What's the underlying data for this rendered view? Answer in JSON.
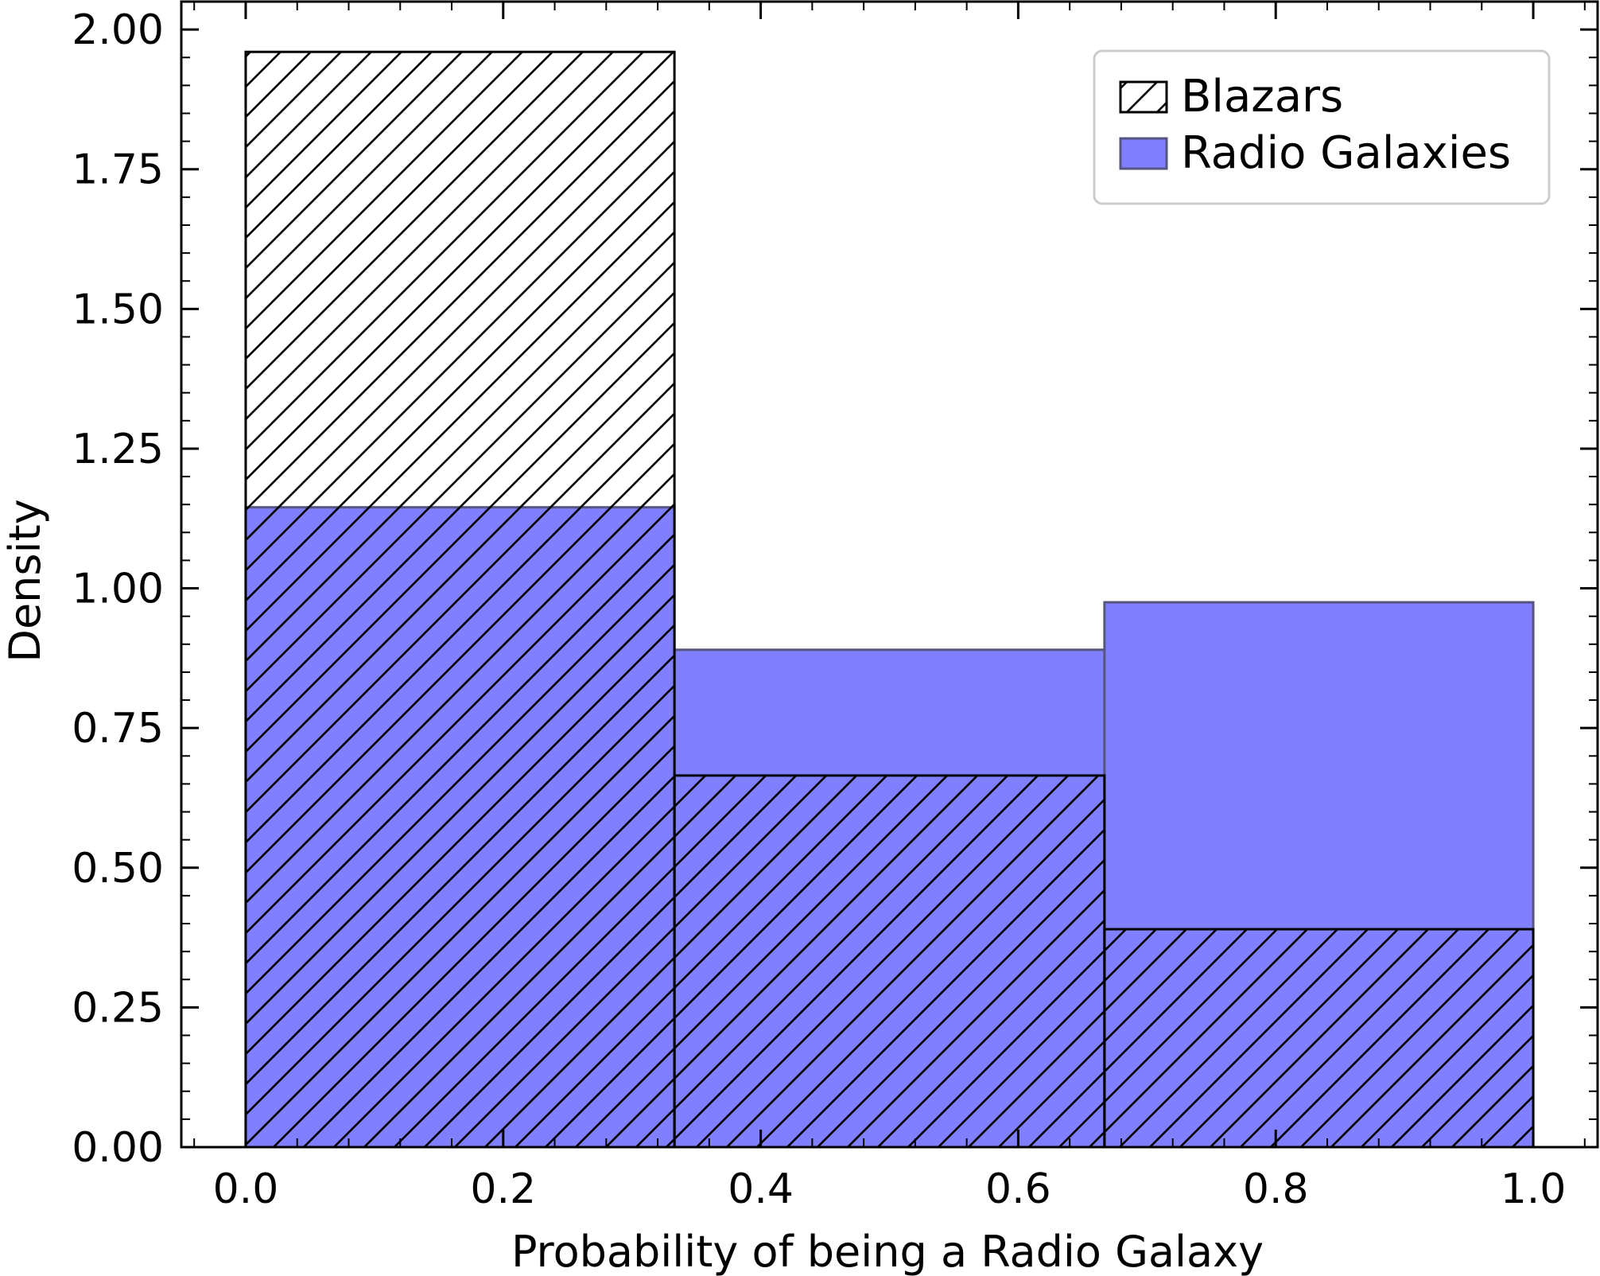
{
  "chart_data": {
    "type": "bar",
    "subtype": "histogram",
    "title": "",
    "xlabel": "Probability of being a Radio Galaxy",
    "ylabel": "Density",
    "xlim": [
      -0.05,
      1.05
    ],
    "ylim": [
      0,
      2.05
    ],
    "xticks": [
      "0.0",
      "0.2",
      "0.4",
      "0.6",
      "0.8",
      "1.0"
    ],
    "yticks": [
      "0.00",
      "0.25",
      "0.50",
      "0.75",
      "1.00",
      "1.25",
      "1.50",
      "1.75",
      "2.00"
    ],
    "bin_edges": [
      0.0,
      0.333,
      0.667,
      1.0
    ],
    "series": [
      {
        "name": "Blazars",
        "values": [
          1.96,
          0.665,
          0.39
        ],
        "style": "hatched",
        "color": "#000000"
      },
      {
        "name": "Radio Galaxies",
        "values": [
          1.145,
          0.89,
          0.975
        ],
        "style": "filled",
        "color": "#8080ff"
      }
    ],
    "legend": {
      "position": "top-right"
    },
    "grid": false
  }
}
